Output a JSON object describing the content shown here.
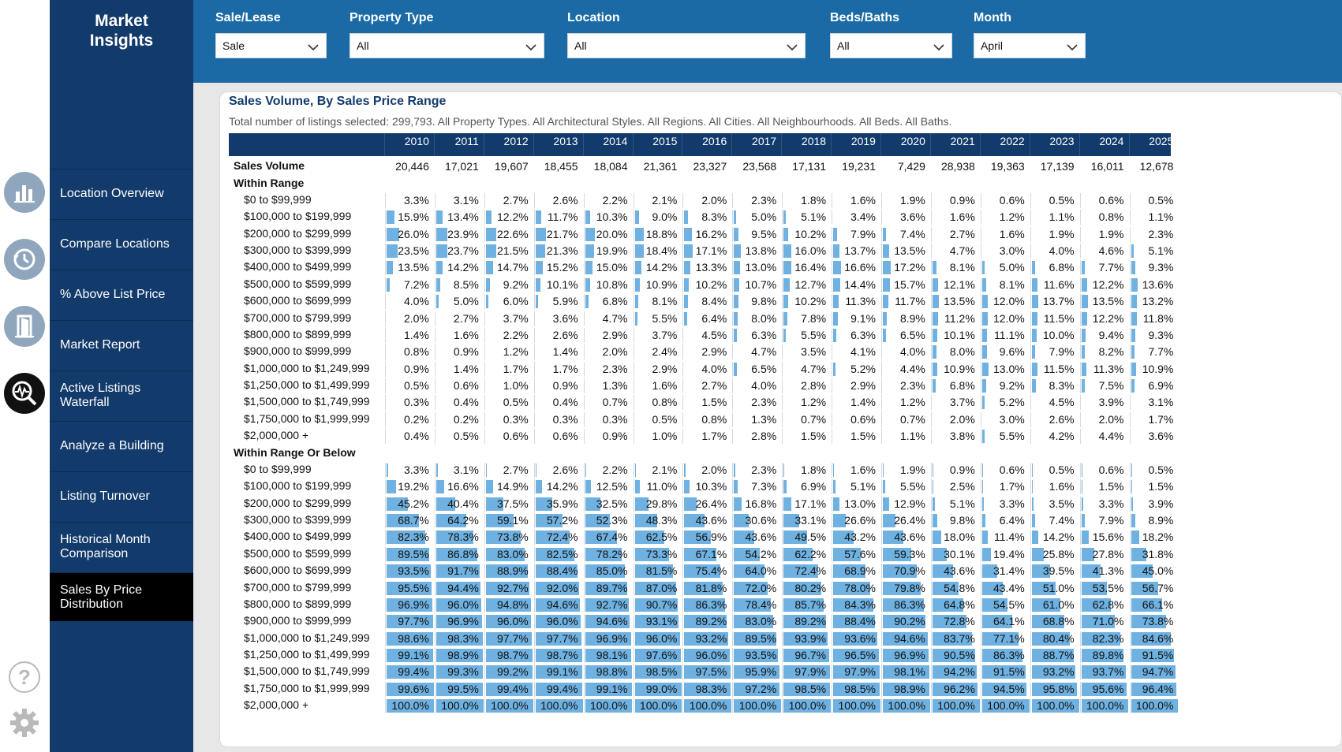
{
  "app": {
    "brand_line1": "Market",
    "brand_line2": "Insights"
  },
  "nav": [
    {
      "label1": "Location Overview",
      "label2": ""
    },
    {
      "label1": "Compare Locations",
      "label2": ""
    },
    {
      "label1": "% Above List Price",
      "label2": ""
    },
    {
      "label1": "Market Report",
      "label2": ""
    },
    {
      "label1": "Active Listings",
      "label2": "Waterfall"
    },
    {
      "label1": "Analyze a Building",
      "label2": ""
    },
    {
      "label1": "Listing Turnover",
      "label2": ""
    },
    {
      "label1": "Historical Month",
      "label2": "Comparison"
    },
    {
      "label1": "Sales By Price",
      "label2": "Distribution"
    }
  ],
  "rail_icons": [
    "bar-chart-icon",
    "history-icon",
    "door-icon",
    "search-waveform-icon",
    "help-icon",
    "gear-icon"
  ],
  "filters": [
    {
      "label": "Sale/Lease",
      "value": "Sale"
    },
    {
      "label": "Property Type",
      "value": "All"
    },
    {
      "label": "Location",
      "value": "All"
    },
    {
      "label": "Beds/Baths",
      "value": "All"
    },
    {
      "label": "Month",
      "value": "April"
    }
  ],
  "card": {
    "title": "Sales Volume, By Sales Price Range",
    "subtitle": "Total number of listings selected: 299,793. All Property Types. All Architectural Styles. All Regions. All Cities. All Neighbourhoods. All Beds. All Baths."
  },
  "colors": {
    "sidebar": "#123a6b",
    "filterbar": "#1b6aa5",
    "bar": "#6fb1e0",
    "active": "#000000"
  },
  "table": {
    "years": [
      "2010",
      "2011",
      "2012",
      "2013",
      "2014",
      "2015",
      "2016",
      "2017",
      "2018",
      "2019",
      "2020",
      "2021",
      "2022",
      "2023",
      "2024",
      "2025"
    ],
    "sales_volume_label": "Sales Volume",
    "sales_volume": [
      "20,446",
      "17,021",
      "19,607",
      "18,455",
      "18,084",
      "21,361",
      "23,327",
      "23,568",
      "17,131",
      "19,231",
      "7,429",
      "28,938",
      "19,363",
      "17,139",
      "16,011",
      "12,678"
    ],
    "ranges": [
      "$0 to $99,999",
      "$100,000 to $199,999",
      "$200,000 to $299,999",
      "$300,000 to $399,999",
      "$400,000 to $499,999",
      "$500,000 to $599,999",
      "$600,000 to $699,999",
      "$700,000 to $799,999",
      "$800,000 to $899,999",
      "$900,000 to $999,999",
      "$1,000,000 to $1,249,999",
      "$1,250,000 to $1,499,999",
      "$1,500,000 to $1,749,999",
      "$1,750,000 to $1,999,999",
      "$2,000,000 +"
    ],
    "within_label": "Within Range",
    "within": [
      [
        3.3,
        3.1,
        2.7,
        2.6,
        2.2,
        2.1,
        2.0,
        2.3,
        1.8,
        1.6,
        1.9,
        0.9,
        0.6,
        0.5,
        0.6,
        0.5
      ],
      [
        15.9,
        13.4,
        12.2,
        11.7,
        10.3,
        9.0,
        8.3,
        5.0,
        5.1,
        3.4,
        3.6,
        1.6,
        1.2,
        1.1,
        0.8,
        1.1
      ],
      [
        26.0,
        23.9,
        22.6,
        21.7,
        20.0,
        18.8,
        16.2,
        9.5,
        10.2,
        7.9,
        7.4,
        2.7,
        1.6,
        1.9,
        1.9,
        2.3
      ],
      [
        23.5,
        23.7,
        21.5,
        21.3,
        19.9,
        18.4,
        17.1,
        13.8,
        16.0,
        13.7,
        13.5,
        4.7,
        3.0,
        4.0,
        4.6,
        5.1
      ],
      [
        13.5,
        14.2,
        14.7,
        15.2,
        15.0,
        14.2,
        13.3,
        13.0,
        16.4,
        16.6,
        17.2,
        8.1,
        5.0,
        6.8,
        7.7,
        9.3
      ],
      [
        7.2,
        8.5,
        9.2,
        10.1,
        10.8,
        10.9,
        10.2,
        10.7,
        12.7,
        14.4,
        15.7,
        12.1,
        8.1,
        11.6,
        12.2,
        13.6
      ],
      [
        4.0,
        5.0,
        6.0,
        5.9,
        6.8,
        8.1,
        8.4,
        9.8,
        10.2,
        11.3,
        11.7,
        13.5,
        12.0,
        13.7,
        13.5,
        13.2
      ],
      [
        2.0,
        2.7,
        3.7,
        3.6,
        4.7,
        5.5,
        6.4,
        8.0,
        7.8,
        9.1,
        8.9,
        11.2,
        12.0,
        11.5,
        12.2,
        11.8
      ],
      [
        1.4,
        1.6,
        2.2,
        2.6,
        2.9,
        3.7,
        4.5,
        6.3,
        5.5,
        6.3,
        6.5,
        10.1,
        11.1,
        10.0,
        9.4,
        9.3
      ],
      [
        0.8,
        0.9,
        1.2,
        1.4,
        2.0,
        2.4,
        2.9,
        4.7,
        3.5,
        4.1,
        4.0,
        8.0,
        9.6,
        7.9,
        8.2,
        7.7
      ],
      [
        0.9,
        1.4,
        1.7,
        1.7,
        2.3,
        2.9,
        4.0,
        6.5,
        4.7,
        5.2,
        4.4,
        10.9,
        13.0,
        11.5,
        11.3,
        10.9
      ],
      [
        0.5,
        0.6,
        1.0,
        0.9,
        1.3,
        1.6,
        2.7,
        4.0,
        2.8,
        2.9,
        2.3,
        6.8,
        9.2,
        8.3,
        7.5,
        6.9
      ],
      [
        0.3,
        0.4,
        0.5,
        0.4,
        0.7,
        0.8,
        1.5,
        2.3,
        1.2,
        1.4,
        1.2,
        3.7,
        5.2,
        4.5,
        3.9,
        3.1
      ],
      [
        0.2,
        0.2,
        0.3,
        0.3,
        0.3,
        0.5,
        0.8,
        1.3,
        0.7,
        0.6,
        0.7,
        2.0,
        3.0,
        2.6,
        2.0,
        1.7
      ],
      [
        0.4,
        0.5,
        0.6,
        0.6,
        0.9,
        1.0,
        1.7,
        2.8,
        1.5,
        1.5,
        1.1,
        3.8,
        5.5,
        4.2,
        4.4,
        3.6
      ]
    ],
    "below_label": "Within Range Or Below",
    "below": [
      [
        3.3,
        3.1,
        2.7,
        2.6,
        2.2,
        2.1,
        2.0,
        2.3,
        1.8,
        1.6,
        1.9,
        0.9,
        0.6,
        0.5,
        0.6,
        0.5
      ],
      [
        19.2,
        16.6,
        14.9,
        14.2,
        12.5,
        11.0,
        10.3,
        7.3,
        6.9,
        5.1,
        5.5,
        2.5,
        1.7,
        1.6,
        1.5,
        1.5
      ],
      [
        45.2,
        40.4,
        37.5,
        35.9,
        32.5,
        29.8,
        26.4,
        16.8,
        17.1,
        13.0,
        12.9,
        5.1,
        3.3,
        3.5,
        3.3,
        3.9
      ],
      [
        68.7,
        64.2,
        59.1,
        57.2,
        52.3,
        48.3,
        43.6,
        30.6,
        33.1,
        26.6,
        26.4,
        9.8,
        6.4,
        7.4,
        7.9,
        8.9
      ],
      [
        82.3,
        78.3,
        73.8,
        72.4,
        67.4,
        62.5,
        56.9,
        43.6,
        49.5,
        43.2,
        43.6,
        18.0,
        11.4,
        14.2,
        15.6,
        18.2
      ],
      [
        89.5,
        86.8,
        83.0,
        82.5,
        78.2,
        73.3,
        67.1,
        54.2,
        62.2,
        57.6,
        59.3,
        30.1,
        19.4,
        25.8,
        27.8,
        31.8
      ],
      [
        93.5,
        91.7,
        88.9,
        88.4,
        85.0,
        81.5,
        75.4,
        64.0,
        72.4,
        68.9,
        70.9,
        43.6,
        31.4,
        39.5,
        41.3,
        45.0
      ],
      [
        95.5,
        94.4,
        92.7,
        92.0,
        89.7,
        87.0,
        81.8,
        72.0,
        80.2,
        78.0,
        79.8,
        54.8,
        43.4,
        51.0,
        53.5,
        56.7
      ],
      [
        96.9,
        96.0,
        94.8,
        94.6,
        92.7,
        90.7,
        86.3,
        78.4,
        85.7,
        84.3,
        86.3,
        64.8,
        54.5,
        61.0,
        62.8,
        66.1
      ],
      [
        97.7,
        96.9,
        96.0,
        96.0,
        94.6,
        93.1,
        89.2,
        83.0,
        89.2,
        88.4,
        90.2,
        72.8,
        64.1,
        68.8,
        71.0,
        73.8
      ],
      [
        98.6,
        98.3,
        97.7,
        97.7,
        96.9,
        96.0,
        93.2,
        89.5,
        93.9,
        93.6,
        94.6,
        83.7,
        77.1,
        80.4,
        82.3,
        84.6
      ],
      [
        99.1,
        98.9,
        98.7,
        98.7,
        98.1,
        97.6,
        96.0,
        93.5,
        96.7,
        96.5,
        96.9,
        90.5,
        86.3,
        88.7,
        89.8,
        91.5
      ],
      [
        99.4,
        99.3,
        99.2,
        99.1,
        98.8,
        98.5,
        97.5,
        95.9,
        97.9,
        97.9,
        98.1,
        94.2,
        91.5,
        93.2,
        93.7,
        94.7
      ],
      [
        99.6,
        99.5,
        99.4,
        99.4,
        99.1,
        99.0,
        98.3,
        97.2,
        98.5,
        98.5,
        98.9,
        96.2,
        94.5,
        95.8,
        95.6,
        96.4
      ],
      [
        100.0,
        100.0,
        100.0,
        100.0,
        100.0,
        100.0,
        100.0,
        100.0,
        100.0,
        100.0,
        100.0,
        100.0,
        100.0,
        100.0,
        100.0,
        100.0
      ]
    ]
  }
}
